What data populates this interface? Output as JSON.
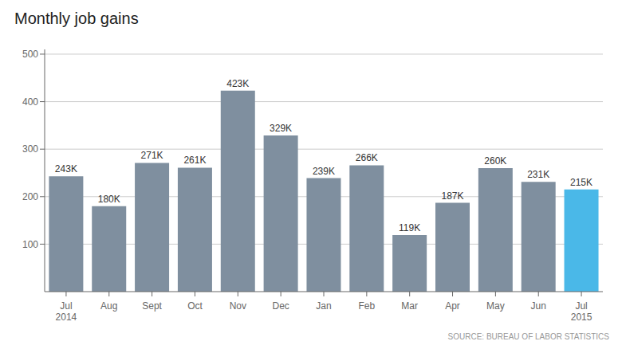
{
  "chart_data": {
    "type": "bar",
    "title": "Monthly job gains",
    "categories": [
      "Jul\n2014",
      "Aug",
      "Sept",
      "Oct",
      "Nov",
      "Dec",
      "Jan",
      "Feb",
      "Mar",
      "Apr",
      "May",
      "Jun",
      "Jul\n2015"
    ],
    "values": [
      243,
      180,
      271,
      261,
      423,
      329,
      239,
      266,
      119,
      187,
      260,
      231,
      215
    ],
    "value_labels": [
      "243K",
      "180K",
      "271K",
      "261K",
      "423K",
      "329K",
      "239K",
      "266K",
      "119K",
      "187K",
      "260K",
      "231K",
      "215K"
    ],
    "data_labels": true,
    "colors": [
      "#7f8f9f",
      "#7f8f9f",
      "#7f8f9f",
      "#7f8f9f",
      "#7f8f9f",
      "#7f8f9f",
      "#7f8f9f",
      "#7f8f9f",
      "#7f8f9f",
      "#7f8f9f",
      "#7f8f9f",
      "#7f8f9f",
      "#4ab8e8"
    ],
    "ylim": [
      0,
      510
    ],
    "yticks": [
      100,
      200,
      300,
      400,
      500
    ],
    "grid": true,
    "annotations": [
      "SOURCE: BUREAU OF LABOR STATISTICS"
    ]
  }
}
